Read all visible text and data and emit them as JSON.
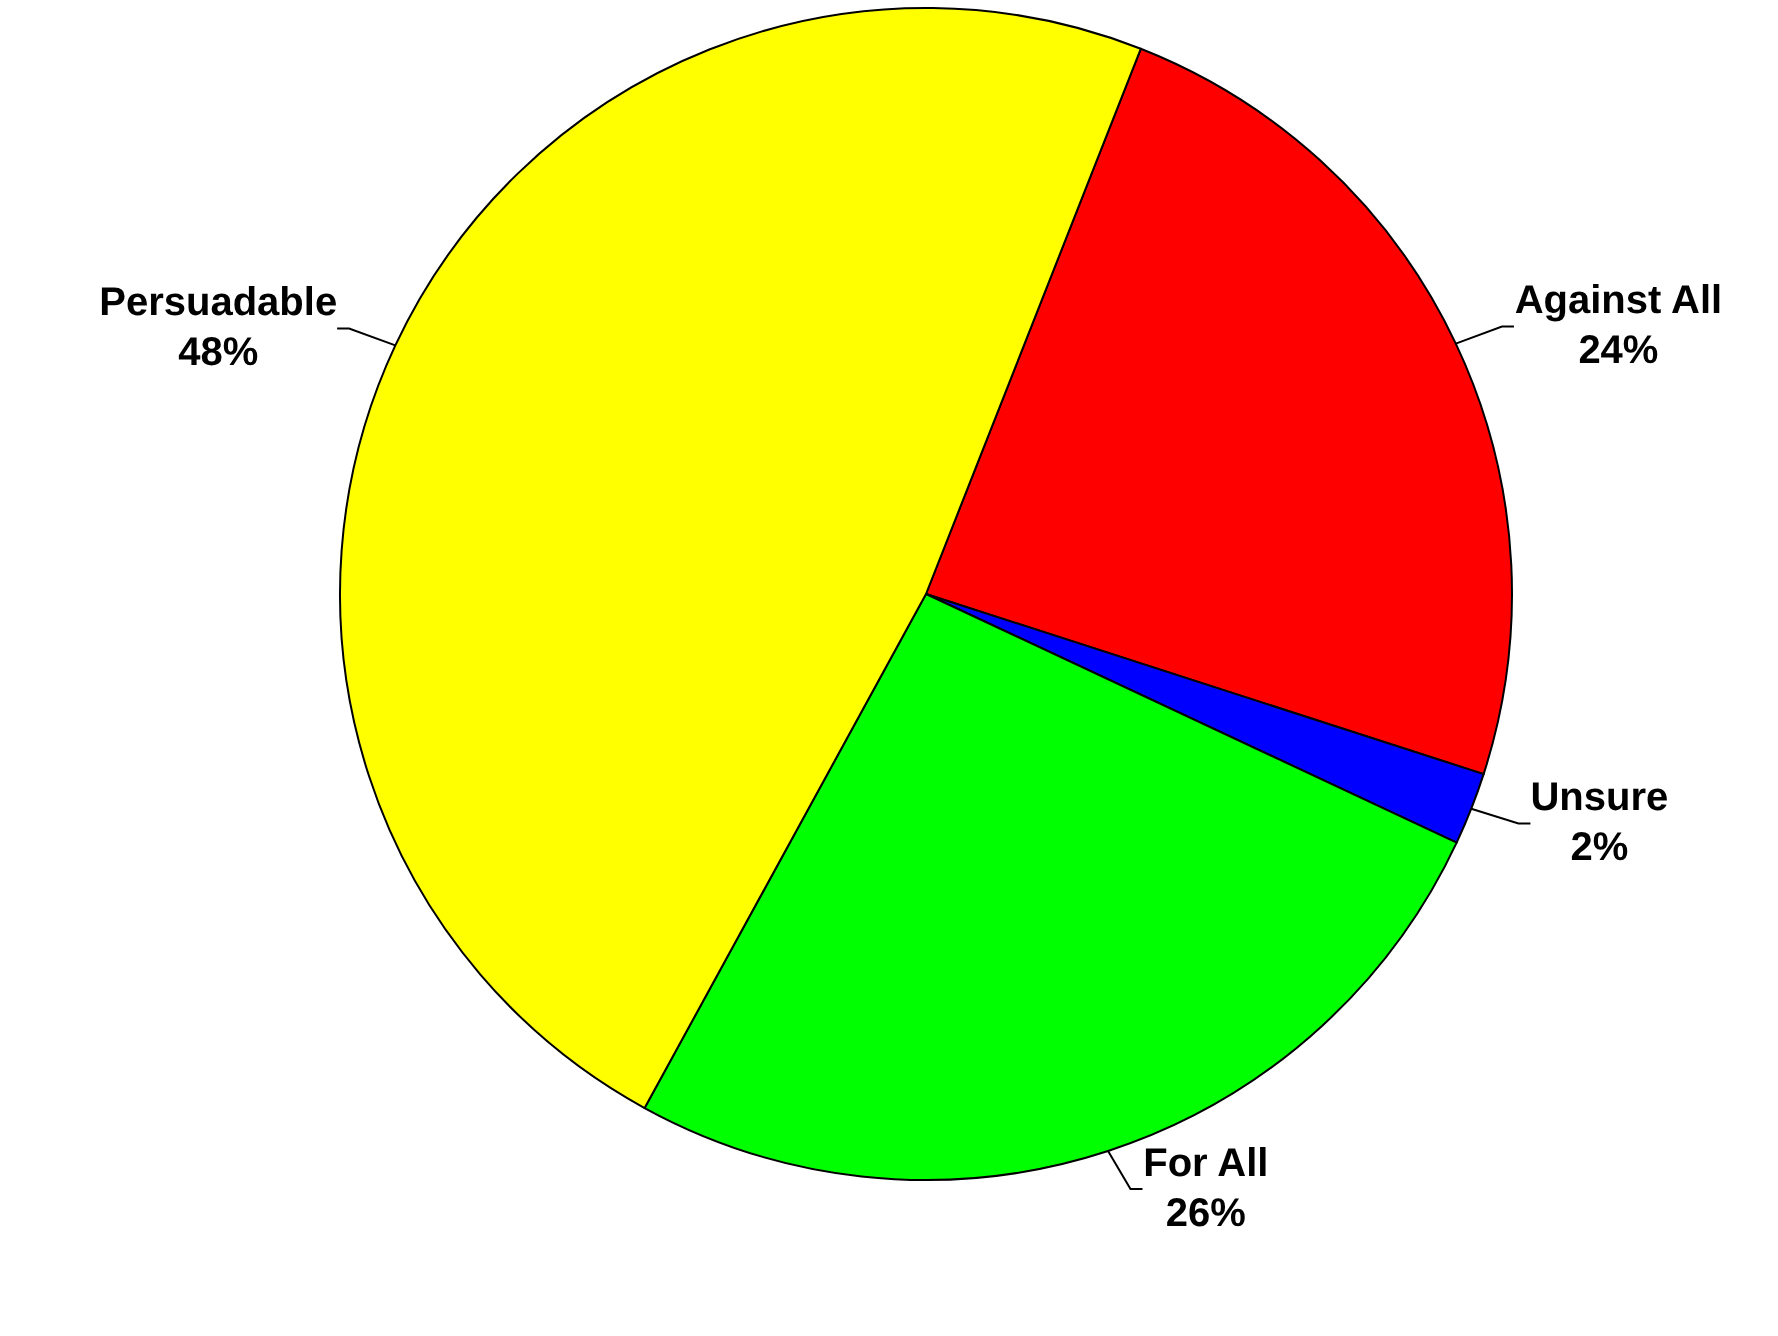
{
  "chart_data": {
    "type": "pie",
    "categories": [
      "Against All",
      "Unsure",
      "For All",
      "Persuadable"
    ],
    "values": [
      24,
      2,
      26,
      48
    ],
    "value_labels": [
      "24%",
      "2%",
      "26%",
      "48%"
    ],
    "colors": [
      "#ff0000",
      "#0000ff",
      "#00ff00",
      "#ffff00"
    ],
    "legend": false
  }
}
